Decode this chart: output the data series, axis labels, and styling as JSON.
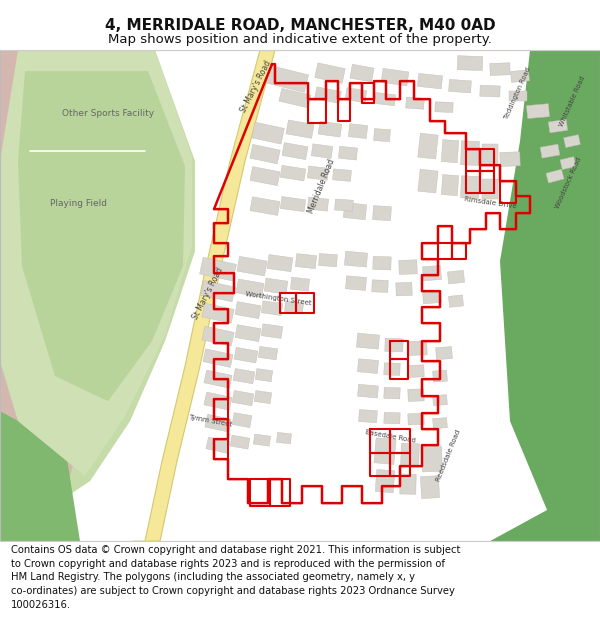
{
  "title_line1": "4, MERRIDALE ROAD, MANCHESTER, M40 0AD",
  "title_line2": "Map shows position and indicative extent of the property.",
  "footer": "Contains OS data © Crown copyright and database right 2021. This information is subject to Crown copyright and database rights 2023 and is reproduced with the permission of HM Land Registry. The polygons (including the associated geometry, namely x, y co-ordinates) are subject to Crown copyright and database rights 2023 Ordnance Survey 100026316.",
  "title_fontsize": 11,
  "subtitle_fontsize": 9.5,
  "footer_fontsize": 7.2,
  "map_bg": "#f5f2ee",
  "road_yellow_fill": "#f5e898",
  "road_yellow_edge": "#d4c870",
  "green_sports": "#c5dba8",
  "green_dark": "#6aaa60",
  "building_fill": "#d8d4ce",
  "building_edge": "#c0bcb6",
  "red_color": "#dd0000",
  "red_lw": 1.8,
  "label_color": "#555555",
  "border_color": "#aaaaaa",
  "title_area_bg": "#ffffff",
  "footer_area_bg": "#ffffff"
}
